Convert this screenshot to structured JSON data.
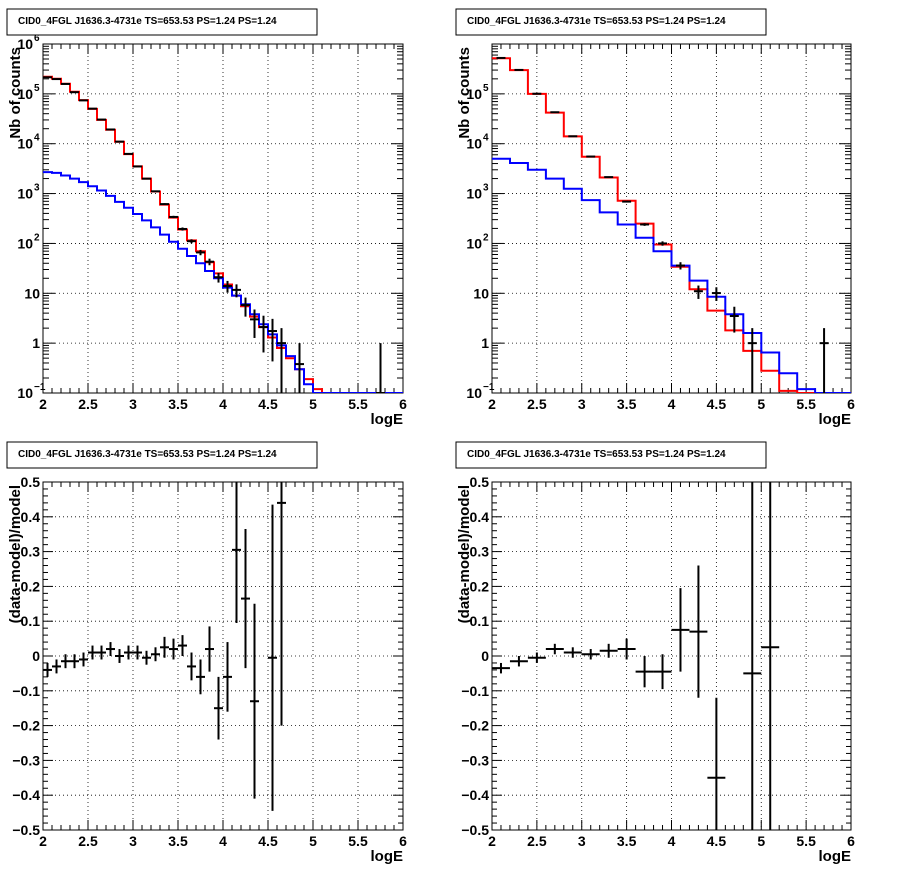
{
  "chart_data": [
    {
      "id": "tl",
      "type": "line",
      "title": "CID0_4FGL J1636.3-4731e TS=653.53 PS=1.24 PS=1.24",
      "xlabel": "logE",
      "ylabel": "Nb of counts",
      "xlim": [
        2,
        6
      ],
      "ylim": [
        0.1,
        1000000
      ],
      "yscale": "log",
      "grid": true,
      "xticks": [
        "2",
        "2.5",
        "3",
        "3.5",
        "4",
        "4.5",
        "5",
        "5.5",
        "6"
      ],
      "yticks": [
        {
          "value": 0.1,
          "base": "10",
          "exp": "−1"
        },
        {
          "value": 1,
          "label": "1"
        },
        {
          "value": 10,
          "label": "10"
        },
        {
          "value": 100,
          "base": "10",
          "exp": "2"
        },
        {
          "value": 1000,
          "base": "10",
          "exp": "3"
        },
        {
          "value": 10000,
          "base": "10",
          "exp": "4"
        },
        {
          "value": 100000,
          "base": "10",
          "exp": "5"
        },
        {
          "value": 1000000,
          "base": "10",
          "exp": "6"
        }
      ],
      "series": [
        {
          "color": "#ff0000",
          "kind": "step",
          "edges_start": 2,
          "bin_width": 0.1,
          "values": [
            220000,
            200000,
            160000,
            110000,
            75000,
            50000,
            30000,
            19000,
            11000,
            6200,
            3500,
            2000,
            1100,
            600,
            330,
            190,
            115,
            70,
            42,
            25,
            15,
            9,
            5.5,
            3.4,
            2.1,
            1.3,
            0.8,
            0.5,
            0.3,
            0.19,
            0.12,
            0.08,
            0.05,
            0.035,
            0.025,
            0.02,
            0.015,
            0.01,
            0.008,
            0.006
          ]
        },
        {
          "color": "#0000ff",
          "kind": "step",
          "edges_start": 2,
          "bin_width": 0.1,
          "values": [
            2700,
            2600,
            2300,
            2000,
            1700,
            1400,
            1150,
            900,
            680,
            520,
            390,
            290,
            210,
            150,
            108,
            78,
            56,
            40,
            28,
            20,
            13,
            9,
            6,
            3.8,
            2.4,
            1.5,
            0.9,
            0.55,
            0.3,
            0.15,
            0.08,
            0.04,
            0.02,
            0.01,
            0.005,
            0.003,
            0.002,
            0.001,
            0.001,
            0.001
          ]
        },
        {
          "color": "#000000",
          "kind": "points",
          "points": [
            {
              "x": 2.05,
              "y": 215000,
              "lo": 214500,
              "hi": 215500
            },
            {
              "x": 2.15,
              "y": 198000,
              "lo": 197500,
              "hi": 198500
            },
            {
              "x": 2.25,
              "y": 158000,
              "lo": 157500,
              "hi": 158500
            },
            {
              "x": 2.35,
              "y": 108000,
              "lo": 107700,
              "hi": 108300
            },
            {
              "x": 2.45,
              "y": 74000,
              "lo": 73700,
              "hi": 74300
            },
            {
              "x": 2.55,
              "y": 50500,
              "lo": 50300,
              "hi": 50700
            },
            {
              "x": 2.65,
              "y": 30500,
              "lo": 30300,
              "hi": 30700
            },
            {
              "x": 2.75,
              "y": 19300,
              "lo": 19150,
              "hi": 19450
            },
            {
              "x": 2.85,
              "y": 11000,
              "lo": 10900,
              "hi": 11100
            },
            {
              "x": 2.95,
              "y": 6250,
              "lo": 6170,
              "hi": 6330
            },
            {
              "x": 3.05,
              "y": 3500,
              "lo": 3440,
              "hi": 3560
            },
            {
              "x": 3.15,
              "y": 1990,
              "lo": 1945,
              "hi": 2035
            },
            {
              "x": 3.25,
              "y": 1110,
              "lo": 1077,
              "hi": 1143
            },
            {
              "x": 3.35,
              "y": 615,
              "lo": 590,
              "hi": 640
            },
            {
              "x": 3.45,
              "y": 340,
              "lo": 322,
              "hi": 358
            },
            {
              "x": 3.55,
              "y": 195,
              "lo": 181,
              "hi": 209
            },
            {
              "x": 3.65,
              "y": 111,
              "lo": 101,
              "hi": 121
            },
            {
              "x": 3.75,
              "y": 66,
              "lo": 58,
              "hi": 74
            },
            {
              "x": 3.85,
              "y": 43,
              "lo": 36.5,
              "hi": 49.5
            },
            {
              "x": 3.95,
              "y": 21,
              "lo": 16.4,
              "hi": 25.6
            },
            {
              "x": 4.05,
              "y": 14,
              "lo": 10.3,
              "hi": 17.7
            },
            {
              "x": 4.15,
              "y": 11.7,
              "lo": 8.3,
              "hi": 15.1
            },
            {
              "x": 4.25,
              "y": 5.8,
              "lo": 3.4,
              "hi": 8.2
            },
            {
              "x": 4.35,
              "y": 3,
              "lo": 1.27,
              "hi": 4.73
            },
            {
              "x": 4.45,
              "y": 2.1,
              "lo": 0.65,
              "hi": 3.55
            },
            {
              "x": 4.55,
              "y": 1.75,
              "lo": 0.43,
              "hi": 3.07
            },
            {
              "x": 4.65,
              "y": 1.0,
              "lo": 0.1,
              "hi": 2.0
            },
            {
              "x": 4.85,
              "y": 0.38,
              "lo": 0.1,
              "hi": 1.0
            },
            {
              "x": 5.75,
              "y": 0.1,
              "lo": 0.1,
              "hi": 1.0
            }
          ]
        }
      ]
    },
    {
      "id": "tr",
      "type": "line",
      "title": "CID0_4FGL J1636.3-4731e TS=653.53 PS=1.24 PS=1.24",
      "xlabel": "logE",
      "ylabel": "Nb of counts",
      "xlim": [
        2,
        6
      ],
      "ylim": [
        0.1,
        1000000
      ],
      "yscale": "log",
      "grid": true,
      "xticks": [
        "2",
        "2.5",
        "3",
        "3.5",
        "4",
        "4.5",
        "5",
        "5.5",
        "6"
      ],
      "yticks": [
        {
          "value": 0.1,
          "base": "10",
          "exp": "−1"
        },
        {
          "value": 1,
          "label": "1"
        },
        {
          "value": 10,
          "label": "10"
        },
        {
          "value": 100,
          "base": "10",
          "exp": "2"
        },
        {
          "value": 1000,
          "base": "10",
          "exp": "3"
        },
        {
          "value": 10000,
          "base": "10",
          "exp": "4"
        },
        {
          "value": 100000,
          "base": "10",
          "exp": "5"
        }
      ],
      "series": [
        {
          "color": "#ff0000",
          "kind": "step",
          "edges_start": 2,
          "bin_width": 0.2,
          "values": [
            520000,
            300000,
            100000,
            42000,
            14000,
            5500,
            2100,
            720,
            250,
            95,
            34,
            12,
            4.5,
            1.8,
            0.7,
            0.28,
            0.11,
            0.05,
            0.02,
            0.008
          ]
        },
        {
          "color": "#0000ff",
          "kind": "step",
          "edges_start": 2,
          "bin_width": 0.2,
          "values": [
            5000,
            4100,
            3000,
            2000,
            1250,
            740,
            420,
            240,
            130,
            70,
            36,
            18,
            8.5,
            3.8,
            1.6,
            0.65,
            0.25,
            0.12,
            0.05,
            0.02
          ]
        },
        {
          "color": "#000000",
          "kind": "points",
          "points": [
            {
              "x": 2.1,
              "y": 525000,
              "lo": 524000,
              "hi": 526000
            },
            {
              "x": 2.3,
              "y": 302000,
              "lo": 301400,
              "hi": 302600
            },
            {
              "x": 2.5,
              "y": 100500,
              "lo": 100200,
              "hi": 100800
            },
            {
              "x": 2.7,
              "y": 42800,
              "lo": 42590,
              "hi": 43010
            },
            {
              "x": 2.9,
              "y": 14100,
              "lo": 13980,
              "hi": 14220
            },
            {
              "x": 3.1,
              "y": 5530,
              "lo": 5455,
              "hi": 5605
            },
            {
              "x": 3.3,
              "y": 2140,
              "lo": 2094,
              "hi": 2186
            },
            {
              "x": 3.5,
              "y": 690,
              "lo": 664,
              "hi": 716
            },
            {
              "x": 3.7,
              "y": 240,
              "lo": 225,
              "hi": 255
            },
            {
              "x": 3.9,
              "y": 100,
              "lo": 90,
              "hi": 110
            },
            {
              "x": 4.1,
              "y": 36,
              "lo": 30,
              "hi": 42
            },
            {
              "x": 4.3,
              "y": 11,
              "lo": 7.7,
              "hi": 14.3
            },
            {
              "x": 4.5,
              "y": 10.1,
              "lo": 7.0,
              "hi": 13.2
            },
            {
              "x": 4.7,
              "y": 3.5,
              "lo": 1.63,
              "hi": 5.37
            },
            {
              "x": 4.9,
              "y": 1.0,
              "lo": 0.1,
              "hi": 2.0
            },
            {
              "x": 5.7,
              "y": 1.0,
              "lo": 0.1,
              "hi": 2.0
            }
          ]
        }
      ]
    },
    {
      "id": "bl",
      "type": "scatter",
      "title": "CID0_4FGL J1636.3-4731e TS=653.53 PS=1.24 PS=1.24",
      "xlabel": "logE",
      "ylabel": "(data-model)/model",
      "xlim": [
        2,
        6
      ],
      "ylim": [
        -0.5,
        0.5
      ],
      "grid": true,
      "xticks": [
        "2",
        "2.5",
        "3",
        "3.5",
        "4",
        "4.5",
        "5",
        "5.5",
        "6"
      ],
      "yticks": [
        "−0.5",
        "−0.4",
        "−0.3",
        "−0.2",
        "−0.1",
        "0",
        "0.1",
        "0.2",
        "0.3",
        "0.4",
        "0.5"
      ],
      "yvalues": [
        -0.5,
        -0.4,
        -0.3,
        -0.2,
        -0.1,
        0,
        0.1,
        0.2,
        0.3,
        0.4,
        0.5
      ],
      "series": [
        {
          "color": "#000000",
          "kind": "points",
          "xerr": 0.05,
          "points": [
            {
              "x": 2.05,
              "y": -0.04,
              "err": 0.02
            },
            {
              "x": 2.15,
              "y": -0.03,
              "err": 0.02
            },
            {
              "x": 2.25,
              "y": -0.015,
              "err": 0.02
            },
            {
              "x": 2.35,
              "y": -0.015,
              "err": 0.02
            },
            {
              "x": 2.45,
              "y": -0.01,
              "err": 0.02
            },
            {
              "x": 2.55,
              "y": 0.01,
              "err": 0.02
            },
            {
              "x": 2.65,
              "y": 0.01,
              "err": 0.02
            },
            {
              "x": 2.75,
              "y": 0.02,
              "err": 0.02
            },
            {
              "x": 2.85,
              "y": 0.0,
              "err": 0.02
            },
            {
              "x": 2.95,
              "y": 0.01,
              "err": 0.02
            },
            {
              "x": 3.05,
              "y": 0.01,
              "err": 0.02
            },
            {
              "x": 3.15,
              "y": -0.005,
              "err": 0.02
            },
            {
              "x": 3.25,
              "y": 0.005,
              "err": 0.02
            },
            {
              "x": 3.35,
              "y": 0.025,
              "err": 0.03
            },
            {
              "x": 3.45,
              "y": 0.02,
              "err": 0.03
            },
            {
              "x": 3.55,
              "y": 0.03,
              "err": 0.03
            },
            {
              "x": 3.65,
              "y": -0.03,
              "err": 0.04
            },
            {
              "x": 3.75,
              "y": -0.06,
              "err": 0.05
            },
            {
              "x": 3.85,
              "y": 0.02,
              "err": 0.065
            },
            {
              "x": 3.95,
              "y": -0.15,
              "err": 0.09
            },
            {
              "x": 4.05,
              "y": -0.06,
              "err": 0.1
            },
            {
              "x": 4.15,
              "y": 0.305,
              "err": 0.21
            },
            {
              "x": 4.25,
              "y": 0.165,
              "err": 0.2
            },
            {
              "x": 4.35,
              "y": -0.13,
              "err": 0.28
            },
            {
              "x": 4.55,
              "y": -0.005,
              "err": 0.44
            },
            {
              "x": 4.65,
              "y": 0.44,
              "err": 0.64
            }
          ]
        }
      ]
    },
    {
      "id": "br",
      "type": "scatter",
      "title": "CID0_4FGL J1636.3-4731e TS=653.53 PS=1.24 PS=1.24",
      "xlabel": "logE",
      "ylabel": "(data-model)/model",
      "xlim": [
        2,
        6
      ],
      "ylim": [
        -0.5,
        0.5
      ],
      "grid": true,
      "xticks": [
        "2",
        "2.5",
        "3",
        "3.5",
        "4",
        "4.5",
        "5",
        "5.5",
        "6"
      ],
      "yticks": [
        "−0.5",
        "−0.4",
        "−0.3",
        "−0.2",
        "−0.1",
        "0",
        "0.1",
        "0.2",
        "0.3",
        "0.4",
        "0.5"
      ],
      "yvalues": [
        -0.5,
        -0.4,
        -0.3,
        -0.2,
        -0.1,
        0,
        0.1,
        0.2,
        0.3,
        0.4,
        0.5
      ],
      "series": [
        {
          "color": "#000000",
          "kind": "points",
          "xerr": 0.1,
          "points": [
            {
              "x": 2.1,
              "y": -0.035,
              "err": 0.015
            },
            {
              "x": 2.3,
              "y": -0.015,
              "err": 0.015
            },
            {
              "x": 2.5,
              "y": -0.005,
              "err": 0.015
            },
            {
              "x": 2.7,
              "y": 0.02,
              "err": 0.015
            },
            {
              "x": 2.9,
              "y": 0.01,
              "err": 0.015
            },
            {
              "x": 3.1,
              "y": 0.005,
              "err": 0.015
            },
            {
              "x": 3.3,
              "y": 0.015,
              "err": 0.02
            },
            {
              "x": 3.5,
              "y": 0.02,
              "err": 0.03
            },
            {
              "x": 3.7,
              "y": -0.045,
              "err": 0.045
            },
            {
              "x": 3.9,
              "y": -0.045,
              "err": 0.05
            },
            {
              "x": 4.1,
              "y": 0.075,
              "err": 0.12
            },
            {
              "x": 4.3,
              "y": 0.07,
              "err": 0.19
            },
            {
              "x": 4.5,
              "y": -0.35,
              "err": 0.23
            },
            {
              "x": 4.9,
              "y": -0.05,
              "err": 0.7
            },
            {
              "x": 5.1,
              "y": 0.025,
              "err": 0.7
            }
          ]
        }
      ]
    }
  ]
}
